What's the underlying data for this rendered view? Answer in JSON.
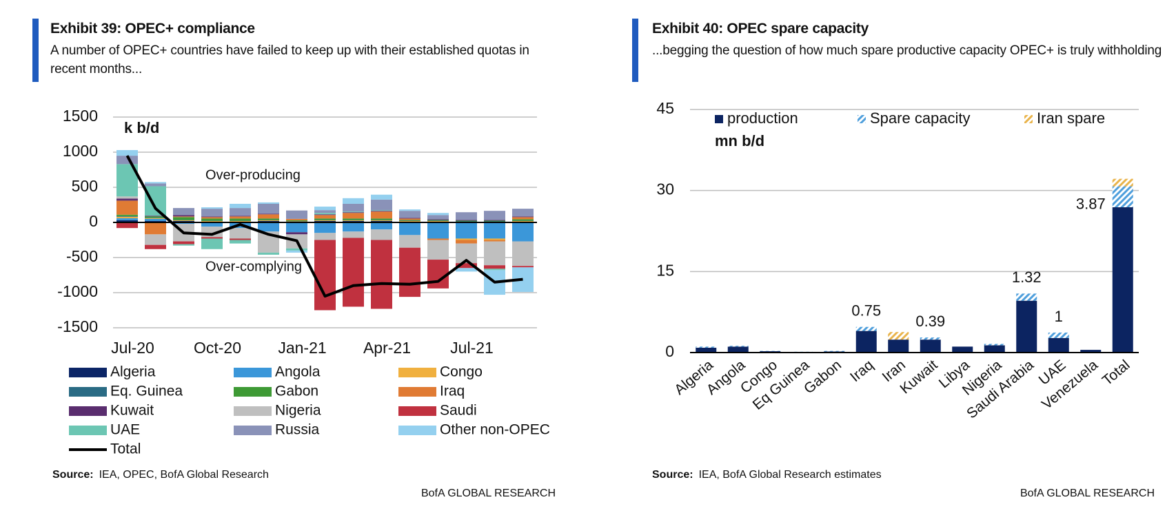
{
  "chart_data": [
    {
      "type": "bar",
      "stacked": true,
      "title": "Exhibit 39: OPEC+ compliance",
      "subtitle": "A number of OPEC+ countries have failed to keep up with their established quotas in recent months...",
      "unit_label": "k b/d",
      "annotations": [
        "Over-producing",
        "Over-complying"
      ],
      "categories": [
        "Jul-20",
        null,
        null,
        "Oct-20",
        null,
        null,
        "Jan-21",
        null,
        null,
        "Apr-21",
        null,
        null,
        "Jul-21",
        null,
        null
      ],
      "ylim": [
        -1500,
        1500
      ],
      "yticks": [
        1500,
        1000,
        500,
        0,
        -500,
        -1000,
        -1500
      ],
      "grid": true,
      "legend": "bottom",
      "series": [
        {
          "name": "Algeria",
          "color": "#0b2566",
          "values": [
            30,
            20,
            20,
            10,
            10,
            20,
            10,
            20,
            20,
            20,
            10,
            10,
            10,
            10,
            10
          ]
        },
        {
          "name": "Angola",
          "color": "#3b97d9",
          "values": [
            30,
            30,
            -20,
            -60,
            -80,
            -130,
            -140,
            -150,
            -130,
            -100,
            -180,
            -230,
            -230,
            -230,
            -270
          ]
        },
        {
          "name": "Congo",
          "color": "#f0b03f",
          "values": [
            20,
            10,
            10,
            10,
            10,
            10,
            5,
            10,
            10,
            10,
            10,
            10,
            -20,
            -20,
            10
          ]
        },
        {
          "name": "Eq. Guinea",
          "color": "#2a6b84",
          "values": [
            10,
            5,
            5,
            5,
            5,
            5,
            5,
            5,
            5,
            5,
            5,
            5,
            5,
            5,
            5
          ]
        },
        {
          "name": "Gabon",
          "color": "#3e9a35",
          "values": [
            20,
            20,
            40,
            30,
            30,
            20,
            10,
            20,
            20,
            20,
            10,
            10,
            10,
            10,
            20
          ]
        },
        {
          "name": "Iraq",
          "color": "#e07b34",
          "values": [
            200,
            -170,
            10,
            20,
            30,
            60,
            20,
            50,
            80,
            100,
            20,
            -20,
            -50,
            -20,
            30
          ]
        },
        {
          "name": "Kuwait",
          "color": "#5a2d6e",
          "values": [
            30,
            10,
            20,
            10,
            10,
            10,
            -30,
            10,
            10,
            10,
            10,
            10,
            10,
            10,
            10
          ]
        },
        {
          "name": "Nigeria",
          "color": "#bfbfbf",
          "values": [
            30,
            -150,
            -250,
            -150,
            -150,
            -300,
            -200,
            -100,
            -90,
            -150,
            -180,
            -280,
            -280,
            -340,
            -350
          ]
        },
        {
          "name": "Saudi",
          "color": "#c0313f",
          "values": [
            -80,
            -60,
            -40,
            -20,
            -20,
            0,
            0,
            -1000,
            -980,
            -980,
            -700,
            -410,
            -70,
            -50,
            -20
          ]
        },
        {
          "name": "UAE",
          "color": "#6cc6b3",
          "values": [
            460,
            420,
            -20,
            -150,
            -50,
            -30,
            -30,
            20,
            10,
            10,
            0,
            0,
            0,
            -20,
            0
          ]
        },
        {
          "name": "Russia",
          "color": "#8a92b8",
          "values": [
            120,
            40,
            100,
            110,
            110,
            140,
            120,
            40,
            110,
            150,
            100,
            60,
            110,
            130,
            110
          ]
        },
        {
          "name": "Other non-OPEC",
          "color": "#94d0ef",
          "values": [
            80,
            20,
            0,
            20,
            60,
            20,
            -30,
            50,
            80,
            70,
            20,
            30,
            -50,
            -350,
            -350
          ]
        },
        {
          "name": "Total",
          "type": "line",
          "color": "#000000",
          "values": [
            950,
            200,
            -150,
            -170,
            -30,
            -170,
            -260,
            -1050,
            -900,
            -870,
            -880,
            -840,
            -540,
            -850,
            -810
          ]
        }
      ],
      "source_label": "Source:",
      "source": "IEA, OPEC,  BofA Global Research",
      "footer": "BofA GLOBAL RESEARCH"
    },
    {
      "type": "bar",
      "stacked": true,
      "title": "Exhibit 40: OPEC spare capacity",
      "subtitle": "...begging the question of how much spare productive capacity OPEC+ is truly withholding",
      "unit_label": "mn b/d",
      "categories": [
        "Algeria",
        "Angola",
        "Congo",
        "Eq Guinea",
        "Gabon",
        "Iraq",
        "Iran",
        "Kuwait",
        "Libya",
        "Nigeria",
        "Saudi Arabia",
        "UAE",
        "Venezuela",
        "Total"
      ],
      "ylim": [
        0,
        45
      ],
      "yticks": [
        0,
        15,
        30,
        45
      ],
      "grid": true,
      "legend": "top",
      "series": [
        {
          "name": "production",
          "color": "#0c2461",
          "values": [
            0.9,
            1.1,
            0.25,
            0.1,
            0.2,
            4.0,
            2.4,
            2.4,
            1.1,
            1.35,
            9.6,
            2.7,
            0.5,
            26.9
          ]
        },
        {
          "name": "Spare capacity",
          "color": "#4f9fdc",
          "pattern": "hatch",
          "values": [
            0.2,
            0.15,
            0.05,
            0.05,
            0.1,
            0.75,
            0,
            0.39,
            0,
            0.25,
            1.32,
            1,
            0,
            3.87
          ],
          "value_labels": [
            null,
            null,
            null,
            null,
            null,
            "0.75",
            null,
            "0.39",
            null,
            null,
            "1.32",
            "1",
            null,
            "3.87"
          ]
        },
        {
          "name": "Iran spare",
          "color": "#e9b44c",
          "pattern": "hatch",
          "values": [
            0,
            0,
            0,
            0,
            0,
            0,
            1.4,
            0,
            0,
            0,
            0,
            0,
            0,
            1.4
          ]
        }
      ],
      "source_label": "Source:",
      "source": "IEA, BofA Global Research estimates",
      "footer": "BofA GLOBAL RESEARCH"
    }
  ]
}
